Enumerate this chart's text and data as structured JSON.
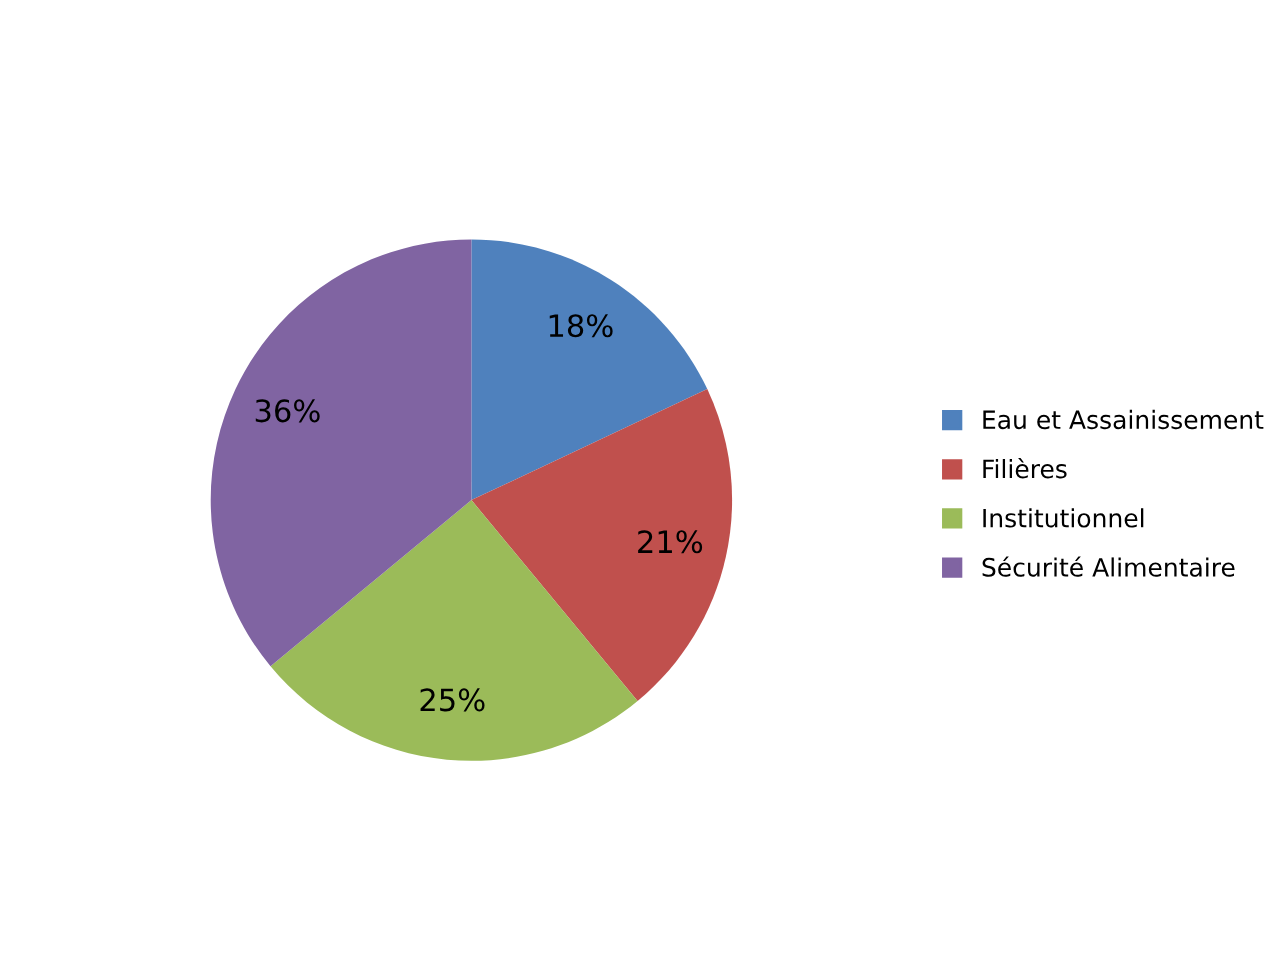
{
  "chart_data": {
    "type": "pie",
    "categories": [
      "Eau et Assainissement",
      "Filières",
      "Institutionnel",
      "Sécurité Alimentaire"
    ],
    "values": [
      18,
      21,
      25,
      36
    ],
    "colors": [
      "#4f81bd",
      "#c0504d",
      "#9bbb59",
      "#8064a2"
    ],
    "value_labels": [
      "18%",
      "21%",
      "25%",
      "36%"
    ],
    "legend": "right"
  }
}
